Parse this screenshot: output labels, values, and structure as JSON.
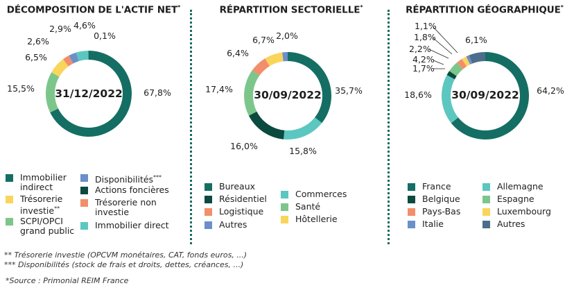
{
  "colors": {
    "dark_green": "#156e63",
    "darker_green": "#0b4a3f",
    "light_green": "#7dc68b",
    "teal": "#5cc7c0",
    "yellow": "#fad55c",
    "orange": "#f28e6b",
    "blue": "#6b8fc9",
    "slate": "#4c6e8c",
    "divider": "#1a6b5f"
  },
  "chart_data": [
    {
      "type": "pie",
      "title": "DÉCOMPOSITION DE L'ACTIF NET",
      "title_mark": "*",
      "center_label": "31/12/2022",
      "series": [
        {
          "name": "Immobilier indirect",
          "value": 67.8,
          "label": "67,8%",
          "color": "#156e63"
        },
        {
          "name": "SCPI/OPCI grand public",
          "value": 15.5,
          "label": "15,5%",
          "color": "#7dc68b"
        },
        {
          "name": "Trésorerie investie",
          "value": 6.5,
          "label": "6,5%",
          "color": "#fad55c"
        },
        {
          "name": "Trésorerie non investie",
          "value": 2.6,
          "label": "2,6%",
          "color": "#f28e6b"
        },
        {
          "name": "Disponibilités",
          "value": 2.9,
          "label": "2,9%",
          "color": "#6b8fc9"
        },
        {
          "name": "Immobilier direct",
          "value": 4.6,
          "label": "4,6%",
          "color": "#5cc7c0"
        },
        {
          "name": "Actions foncières",
          "value": 0.1,
          "label": "0,1%",
          "color": "#0b4a3f"
        }
      ],
      "legend": [
        {
          "text": "Immobilier\nindirect",
          "mark": "",
          "color": "#156e63"
        },
        {
          "text": "Trésorerie\ninvestie",
          "mark": "**",
          "color": "#fad55c"
        },
        {
          "text": "SCPI/OPCI\ngrand public",
          "mark": "",
          "color": "#7dc68b"
        },
        {
          "text": "Disponibilités",
          "mark": "***",
          "color": "#6b8fc9"
        },
        {
          "text": "Actions foncières",
          "mark": "",
          "color": "#0b4a3f"
        },
        {
          "text": "Trésorerie non\ninvestie",
          "mark": "",
          "color": "#f28e6b"
        },
        {
          "text": "Immobilier direct",
          "mark": "",
          "color": "#5cc7c0"
        }
      ]
    },
    {
      "type": "pie",
      "title": "RÉPARTITION SECTORIELLE",
      "title_mark": "*",
      "center_label": "30/09/2022",
      "series": [
        {
          "name": "Bureaux",
          "value": 35.7,
          "label": "35,7%",
          "color": "#156e63"
        },
        {
          "name": "Commerces",
          "value": 15.8,
          "label": "15,8%",
          "color": "#5cc7c0"
        },
        {
          "name": "Résidentiel",
          "value": 16.0,
          "label": "16,0%",
          "color": "#0b4a3f"
        },
        {
          "name": "Santé",
          "value": 17.4,
          "label": "17,4%",
          "color": "#7dc68b"
        },
        {
          "name": "Logistique",
          "value": 6.4,
          "label": "6,4%",
          "color": "#f28e6b"
        },
        {
          "name": "Hôtellerie",
          "value": 6.7,
          "label": "6,7%",
          "color": "#fad55c"
        },
        {
          "name": "Autres",
          "value": 2.0,
          "label": "2,0%",
          "color": "#6b8fc9"
        }
      ],
      "legend": [
        {
          "text": "Bureaux",
          "mark": "",
          "color": "#156e63"
        },
        {
          "text": "Résidentiel",
          "mark": "",
          "color": "#0b4a3f"
        },
        {
          "text": "Logistique",
          "mark": "",
          "color": "#f28e6b"
        },
        {
          "text": "Autres",
          "mark": "",
          "color": "#6b8fc9"
        },
        {
          "text": "Commerces",
          "mark": "",
          "color": "#5cc7c0"
        },
        {
          "text": "Santé",
          "mark": "",
          "color": "#7dc68b"
        },
        {
          "text": "Hôtellerie",
          "mark": "",
          "color": "#fad55c"
        }
      ]
    },
    {
      "type": "pie",
      "title": "RÉPARTITION GÉOGRAPHIQUE",
      "title_mark": "*",
      "center_label": "30/09/2022",
      "series": [
        {
          "name": "France",
          "value": 64.2,
          "label": "64,2%",
          "color": "#156e63"
        },
        {
          "name": "Allemagne",
          "value": 18.6,
          "label": "18,6%",
          "color": "#5cc7c0"
        },
        {
          "name": "Belgique",
          "value": 1.7,
          "label": "1,7%",
          "color": "#0b4a3f"
        },
        {
          "name": "Espagne",
          "value": 4.2,
          "label": "4,2%",
          "color": "#7dc68b"
        },
        {
          "name": "Pays-Bas",
          "value": 2.2,
          "label": "2,2%",
          "color": "#f28e6b"
        },
        {
          "name": "Luxembourg",
          "value": 1.8,
          "label": "1,8%",
          "color": "#fad55c"
        },
        {
          "name": "Italie",
          "value": 1.1,
          "label": "1,1%",
          "color": "#6b8fc9"
        },
        {
          "name": "Autres",
          "value": 6.1,
          "label": "6,1%",
          "color": "#4c6e8c"
        }
      ],
      "legend": [
        {
          "text": "France",
          "mark": "",
          "color": "#156e63"
        },
        {
          "text": "Belgique",
          "mark": "",
          "color": "#0b4a3f"
        },
        {
          "text": "Pays-Bas",
          "mark": "",
          "color": "#f28e6b"
        },
        {
          "text": "Italie",
          "mark": "",
          "color": "#6b8fc9"
        },
        {
          "text": "Allemagne",
          "mark": "",
          "color": "#5cc7c0"
        },
        {
          "text": "Espagne",
          "mark": "",
          "color": "#7dc68b"
        },
        {
          "text": "Luxembourg",
          "mark": "",
          "color": "#fad55c"
        },
        {
          "text": "Autres",
          "mark": "",
          "color": "#4c6e8c"
        }
      ]
    }
  ],
  "footnotes": {
    "note_2": "** Trésorerie investie (OPCVM monétaires, CAT, fonds euros, ...)",
    "note_3": "*** Disponibilités (stock de frais et droits, dettes, créances, ...)",
    "source": "*Source : Primonial REIM France"
  }
}
